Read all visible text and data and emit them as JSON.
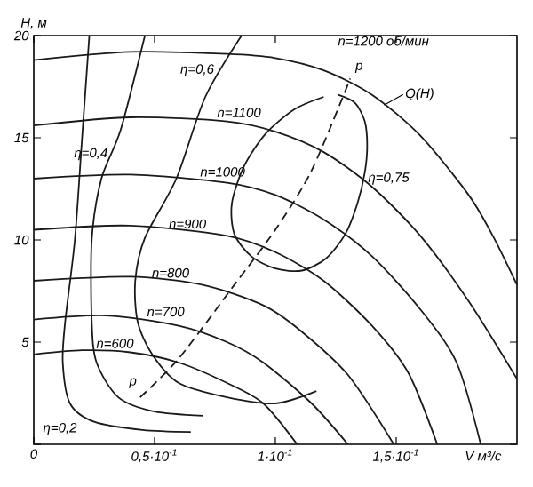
{
  "chart_data": {
    "type": "line",
    "xlabel": "V м³/с",
    "ylabel": "H, м",
    "xlim": [
      0,
      0.2
    ],
    "ylim": [
      0,
      20
    ],
    "xticks": [
      0,
      {
        "value": 0.05,
        "label": "0,5·10$^{-1}$"
      },
      {
        "value": 0.1,
        "label": "1·10$^{-1}$"
      },
      {
        "value": 0.15,
        "label": "1,5·10$^{-1}$"
      }
    ],
    "yticks": [
      {
        "value": 0,
        "label": null
      },
      5,
      10,
      15,
      20
    ],
    "series": [
      {
        "name": "n=1200 об/мин",
        "color": "#1a1a1a",
        "x": [
          0,
          0.04,
          0.08,
          0.1,
          0.12,
          0.14,
          0.16,
          0.18,
          0.19,
          0.2
        ],
        "values": [
          18.8,
          19.2,
          19.1,
          18.9,
          18.3,
          17.1,
          15.1,
          12.2,
          10.2,
          7.8
        ]
      },
      {
        "name": "n=1100",
        "color": "#1a1a1a",
        "x": [
          0,
          0.04,
          0.08,
          0.1,
          0.12,
          0.14,
          0.16,
          0.18,
          0.2
        ],
        "values": [
          15.6,
          16.0,
          15.8,
          15.3,
          14.3,
          12.6,
          10.2,
          7.0,
          3.2
        ]
      },
      {
        "name": "n=1000",
        "color": "#1a1a1a",
        "x": [
          0,
          0.04,
          0.08,
          0.1,
          0.12,
          0.14,
          0.16,
          0.175,
          0.185
        ],
        "values": [
          13.0,
          13.2,
          12.8,
          12.2,
          11.0,
          9.2,
          6.6,
          4.0,
          0
        ]
      },
      {
        "name": "n=900",
        "color": "#1a1a1a",
        "x": [
          0,
          0.04,
          0.08,
          0.1,
          0.12,
          0.14,
          0.155,
          0.167
        ],
        "values": [
          10.5,
          10.7,
          10.2,
          9.4,
          8.0,
          5.8,
          3.5,
          0
        ]
      },
      {
        "name": "n=800",
        "color": "#1a1a1a",
        "x": [
          0,
          0.04,
          0.07,
          0.095,
          0.11,
          0.13,
          0.149
        ],
        "values": [
          8.0,
          8.2,
          7.8,
          6.8,
          5.6,
          3.4,
          0
        ]
      },
      {
        "name": "n=700",
        "color": "#1a1a1a",
        "x": [
          0,
          0.03,
          0.06,
          0.08,
          0.095,
          0.115,
          0.13
        ],
        "values": [
          6.1,
          6.3,
          5.8,
          5.0,
          4.0,
          2.0,
          0
        ]
      },
      {
        "name": "n=600",
        "color": "#1a1a1a",
        "x": [
          0,
          0.02,
          0.04,
          0.06,
          0.08,
          0.095,
          0.109
        ],
        "values": [
          4.4,
          4.6,
          4.5,
          4.0,
          3.0,
          2.0,
          0
        ]
      },
      {
        "name": "η=0,2",
        "color": "#1a1a1a",
        "x": [
          0.023,
          0.02,
          0.017,
          0.013,
          0.012,
          0.015,
          0.025,
          0.045,
          0.065
        ],
        "values": [
          20,
          15,
          10,
          6,
          4,
          2,
          1.1,
          0.7,
          0.6
        ]
      },
      {
        "name": "η=0,4",
        "color": "#1a1a1a",
        "x": [
          0.046,
          0.036,
          0.028,
          0.024,
          0.024,
          0.026,
          0.035,
          0.05,
          0.07
        ],
        "values": [
          20,
          15.4,
          13,
          10,
          6,
          4,
          2.3,
          1.6,
          1.4
        ]
      },
      {
        "name": "η=0,6",
        "color": "#1a1a1a",
        "x": [
          0.086,
          0.071,
          0.059,
          0.046,
          0.042,
          0.043,
          0.049,
          0.06,
          0.08,
          0.1,
          0.117
        ],
        "values": [
          20,
          17,
          13,
          10.1,
          8,
          6,
          4.4,
          3.0,
          2.3,
          2.0,
          2.6
        ]
      },
      {
        "name": "η=0,75",
        "color": "#1a1a1a",
        "x": [
          0.126,
          0.133,
          0.137,
          0.138,
          0.137,
          0.134,
          0.129,
          0.121,
          0.111,
          0.1,
          0.09,
          0.083,
          0.082,
          0.087,
          0.096,
          0.108,
          0.12
        ],
        "values": [
          17.1,
          16.7,
          15.8,
          14.6,
          13.3,
          11.8,
          10.3,
          9.1,
          8.5,
          8.6,
          9.2,
          10.3,
          11.8,
          13.6,
          15.2,
          16.4,
          17.0
        ]
      },
      {
        "color": "#1a1a1a",
        "line_style": "dashed",
        "x": [
          0.044,
          0.06,
          0.083,
          0.1,
          0.115,
          0.131
        ],
        "values": [
          2.3,
          4.2,
          7.8,
          10.5,
          13.4,
          17.9
        ]
      }
    ],
    "annotations": [
      {
        "text": "p",
        "x": 0.044,
        "y": 2.3
      },
      {
        "text": "p",
        "x": 0.131,
        "y": 17.9
      },
      {
        "text": "Q(H)",
        "x": 0.145,
        "y": 16.6
      }
    ]
  }
}
